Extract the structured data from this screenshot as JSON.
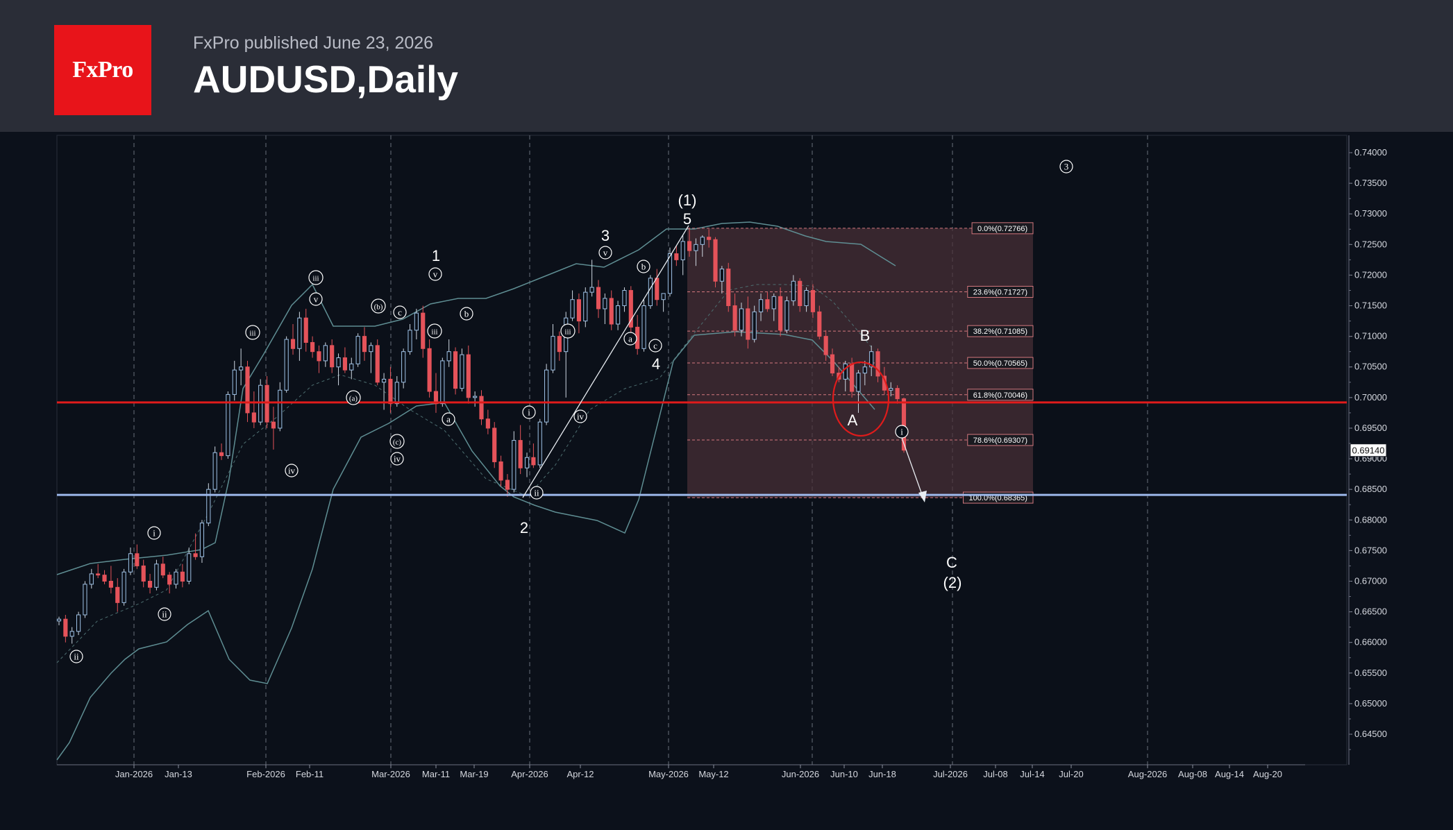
{
  "header": {
    "logo_text": "FxPro",
    "published": "FxPro published June 23, 2026",
    "title": "AUDUSD,Daily"
  },
  "chart_data": {
    "type": "candlestick",
    "symbol": "AUDUSD",
    "timeframe": "Daily",
    "current_price": "0.69140",
    "ylim": [
      0.6405,
      0.7425
    ],
    "y_ticks": [
      "0.74000",
      "0.73500",
      "0.73000",
      "0.72500",
      "0.72000",
      "0.71500",
      "0.71000",
      "0.70500",
      "0.70000",
      "0.69500",
      "0.69000",
      "0.68500",
      "0.68000",
      "0.67500",
      "0.67000",
      "0.66500",
      "0.66000",
      "0.65500",
      "0.65000",
      "0.64500"
    ],
    "x_ticks": [
      "Jan-2026",
      "Jan-13",
      "Feb-2026",
      "Feb-11",
      "Mar-2026",
      "Mar-11",
      "Mar-19",
      "Apr-2026",
      "Apr-12",
      "May-2026",
      "May-12",
      "Jun-2026",
      "Jun-10",
      "Jun-18",
      "Jul-2026",
      "Jul-08",
      "Jul-14",
      "Jul-20",
      "Aug-2026",
      "Aug-08",
      "Aug-14",
      "Aug-20"
    ],
    "horizontal_levels": {
      "resistance": 0.6992,
      "support": 0.6841
    },
    "fibonacci": [
      {
        "label": "0.0%(0.72766)",
        "value": 0.72766
      },
      {
        "label": "23.6%(0.71727)",
        "value": 0.71727
      },
      {
        "label": "38.2%(0.71085)",
        "value": 0.71085
      },
      {
        "label": "50.0%(0.70565)",
        "value": 0.70565
      },
      {
        "label": "61.8%(0.70046)",
        "value": 0.70046
      },
      {
        "label": "78.6%(0.69307)",
        "value": 0.69307
      },
      {
        "label": "100.0%(0.68365)",
        "value": 0.68365
      }
    ],
    "wave_labels": [
      "ii",
      "i",
      "ii",
      "iii",
      "iv",
      "v",
      "iii",
      "(a)",
      "(b)",
      "(c)",
      "iv",
      "v",
      "iii",
      "1",
      "a",
      "b",
      "c",
      "i",
      "ii",
      "iii",
      "iv",
      "v",
      "a",
      "b",
      "c",
      "3",
      "4",
      "(1)",
      "5",
      "2",
      "B",
      "A",
      "i",
      "C",
      "(2)",
      "3"
    ],
    "candles": [
      [
        0.6635,
        0.6642,
        0.6628,
        0.6638
      ],
      [
        0.6638,
        0.6645,
        0.66,
        0.661
      ],
      [
        0.661,
        0.6625,
        0.6598,
        0.6618
      ],
      [
        0.6618,
        0.665,
        0.6612,
        0.6645
      ],
      [
        0.6645,
        0.67,
        0.664,
        0.6695
      ],
      [
        0.6695,
        0.672,
        0.6688,
        0.6712
      ],
      [
        0.6712,
        0.6728,
        0.6705,
        0.671
      ],
      [
        0.671,
        0.6718,
        0.6695,
        0.67
      ],
      [
        0.67,
        0.6725,
        0.668,
        0.669
      ],
      [
        0.669,
        0.6705,
        0.665,
        0.6665
      ],
      [
        0.6665,
        0.672,
        0.666,
        0.6715
      ],
      [
        0.6715,
        0.6755,
        0.671,
        0.6745
      ],
      [
        0.6745,
        0.676,
        0.672,
        0.6725
      ],
      [
        0.6725,
        0.6735,
        0.669,
        0.67
      ],
      [
        0.67,
        0.6712,
        0.668,
        0.669
      ],
      [
        0.669,
        0.6735,
        0.6685,
        0.6728
      ],
      [
        0.6728,
        0.674,
        0.6705,
        0.671
      ],
      [
        0.671,
        0.6715,
        0.668,
        0.6695
      ],
      [
        0.6695,
        0.672,
        0.6688,
        0.6715
      ],
      [
        0.6715,
        0.6728,
        0.669,
        0.67
      ],
      [
        0.67,
        0.6755,
        0.6695,
        0.6745
      ],
      [
        0.6745,
        0.6778,
        0.6735,
        0.674
      ],
      [
        0.674,
        0.68,
        0.673,
        0.6795
      ],
      [
        0.6795,
        0.686,
        0.679,
        0.685
      ],
      [
        0.685,
        0.692,
        0.6845,
        0.691
      ],
      [
        0.691,
        0.6925,
        0.6898,
        0.6905
      ],
      [
        0.6905,
        0.701,
        0.69,
        0.7005
      ],
      [
        0.7005,
        0.706,
        0.6995,
        0.7045
      ],
      [
        0.7045,
        0.708,
        0.702,
        0.705
      ],
      [
        0.705,
        0.706,
        0.696,
        0.6975
      ],
      [
        0.6975,
        0.701,
        0.695,
        0.696
      ],
      [
        0.696,
        0.703,
        0.6955,
        0.702
      ],
      [
        0.702,
        0.7035,
        0.695,
        0.696
      ],
      [
        0.696,
        0.6985,
        0.6915,
        0.695
      ],
      [
        0.695,
        0.7025,
        0.6945,
        0.7012
      ],
      [
        0.7012,
        0.71,
        0.7008,
        0.7095
      ],
      [
        0.7095,
        0.712,
        0.707,
        0.708
      ],
      [
        0.708,
        0.714,
        0.706,
        0.713
      ],
      [
        0.713,
        0.7145,
        0.7075,
        0.709
      ],
      [
        0.709,
        0.71,
        0.7065,
        0.7075
      ],
      [
        0.7075,
        0.7085,
        0.704,
        0.706
      ],
      [
        0.706,
        0.709,
        0.705,
        0.7085
      ],
      [
        0.7085,
        0.7095,
        0.704,
        0.705
      ],
      [
        0.705,
        0.7072,
        0.702,
        0.7065
      ],
      [
        0.7065,
        0.7082,
        0.704,
        0.7045
      ],
      [
        0.7045,
        0.7065,
        0.703,
        0.7055
      ],
      [
        0.7055,
        0.7105,
        0.705,
        0.71
      ],
      [
        0.71,
        0.7115,
        0.706,
        0.7075
      ],
      [
        0.7075,
        0.709,
        0.704,
        0.7085
      ],
      [
        0.7085,
        0.7095,
        0.702,
        0.7025
      ],
      [
        0.7025,
        0.704,
        0.698,
        0.703
      ],
      [
        0.703,
        0.705,
        0.6975,
        0.699
      ],
      [
        0.699,
        0.7035,
        0.6985,
        0.7025
      ],
      [
        0.7025,
        0.708,
        0.7015,
        0.7075
      ],
      [
        0.7075,
        0.712,
        0.707,
        0.711
      ],
      [
        0.711,
        0.7145,
        0.7095,
        0.7138
      ],
      [
        0.7138,
        0.715,
        0.7065,
        0.708
      ],
      [
        0.708,
        0.7095,
        0.7,
        0.701
      ],
      [
        0.701,
        0.704,
        0.6975,
        0.699
      ],
      [
        0.699,
        0.7065,
        0.6985,
        0.706
      ],
      [
        0.706,
        0.7095,
        0.705,
        0.7075
      ],
      [
        0.7075,
        0.7082,
        0.7005,
        0.7015
      ],
      [
        0.7015,
        0.708,
        0.701,
        0.707
      ],
      [
        0.707,
        0.7085,
        0.699,
        0.7
      ],
      [
        0.7,
        0.701,
        0.6985,
        0.7002
      ],
      [
        0.7002,
        0.7012,
        0.6955,
        0.6965
      ],
      [
        0.6965,
        0.698,
        0.694,
        0.695
      ],
      [
        0.695,
        0.696,
        0.6885,
        0.6895
      ],
      [
        0.6895,
        0.6905,
        0.6855,
        0.6865
      ],
      [
        0.6865,
        0.6875,
        0.6838,
        0.685
      ],
      [
        0.685,
        0.6945,
        0.6845,
        0.693
      ],
      [
        0.693,
        0.6955,
        0.6875,
        0.6885
      ],
      [
        0.6885,
        0.691,
        0.687,
        0.6902
      ],
      [
        0.6902,
        0.6925,
        0.6885,
        0.689
      ],
      [
        0.689,
        0.6965,
        0.6885,
        0.696
      ],
      [
        0.696,
        0.7055,
        0.6955,
        0.7045
      ],
      [
        0.7045,
        0.712,
        0.704,
        0.71
      ],
      [
        0.71,
        0.7108,
        0.706,
        0.7075
      ],
      [
        0.7075,
        0.714,
        0.7,
        0.713
      ],
      [
        0.713,
        0.7175,
        0.7125,
        0.716
      ],
      [
        0.716,
        0.717,
        0.7105,
        0.7125
      ],
      [
        0.7125,
        0.718,
        0.7115,
        0.7172
      ],
      [
        0.7172,
        0.7225,
        0.7165,
        0.718
      ],
      [
        0.718,
        0.7192,
        0.713,
        0.7145
      ],
      [
        0.7145,
        0.717,
        0.712,
        0.7162
      ],
      [
        0.7162,
        0.7175,
        0.711,
        0.712
      ],
      [
        0.712,
        0.7158,
        0.711,
        0.715
      ],
      [
        0.715,
        0.718,
        0.714,
        0.7175
      ],
      [
        0.7175,
        0.7182,
        0.71,
        0.7115
      ],
      [
        0.7115,
        0.7135,
        0.707,
        0.708
      ],
      [
        0.708,
        0.716,
        0.7075,
        0.715
      ],
      [
        0.715,
        0.72,
        0.7145,
        0.7195
      ],
      [
        0.7195,
        0.721,
        0.715,
        0.716
      ],
      [
        0.716,
        0.717,
        0.714,
        0.717
      ],
      [
        0.717,
        0.7245,
        0.7165,
        0.7235
      ],
      [
        0.7235,
        0.7248,
        0.7215,
        0.7225
      ],
      [
        0.7225,
        0.7265,
        0.72,
        0.7255
      ],
      [
        0.7255,
        0.7277,
        0.723,
        0.724
      ],
      [
        0.724,
        0.726,
        0.7215,
        0.725
      ],
      [
        0.725,
        0.7265,
        0.723,
        0.7262
      ],
      [
        0.7262,
        0.7275,
        0.7245,
        0.7258
      ],
      [
        0.7258,
        0.7262,
        0.718,
        0.719
      ],
      [
        0.719,
        0.7215,
        0.717,
        0.721
      ],
      [
        0.721,
        0.722,
        0.714,
        0.715
      ],
      [
        0.715,
        0.717,
        0.71,
        0.711
      ],
      [
        0.711,
        0.7155,
        0.71,
        0.7145
      ],
      [
        0.7145,
        0.7165,
        0.708,
        0.7095
      ],
      [
        0.7095,
        0.715,
        0.709,
        0.714
      ],
      [
        0.714,
        0.717,
        0.7125,
        0.716
      ],
      [
        0.716,
        0.7172,
        0.714,
        0.7145
      ],
      [
        0.7145,
        0.717,
        0.7125,
        0.7165
      ],
      [
        0.7165,
        0.718,
        0.71,
        0.711
      ],
      [
        0.711,
        0.7165,
        0.7105,
        0.7158
      ],
      [
        0.7158,
        0.72,
        0.715,
        0.719
      ],
      [
        0.719,
        0.7195,
        0.714,
        0.715
      ],
      [
        0.715,
        0.718,
        0.714,
        0.7175
      ],
      [
        0.7175,
        0.7185,
        0.713,
        0.714
      ],
      [
        0.714,
        0.715,
        0.7095,
        0.71
      ],
      [
        0.71,
        0.711,
        0.706,
        0.707
      ],
      [
        0.707,
        0.708,
        0.7035,
        0.704
      ],
      [
        0.704,
        0.705,
        0.7025,
        0.703
      ],
      [
        0.703,
        0.706,
        0.701,
        0.7055
      ],
      [
        0.7055,
        0.7065,
        0.7,
        0.701
      ],
      [
        0.701,
        0.7045,
        0.6975,
        0.704
      ],
      [
        0.704,
        0.706,
        0.702,
        0.705
      ],
      [
        0.705,
        0.7085,
        0.7035,
        0.7075
      ],
      [
        0.7075,
        0.708,
        0.7025,
        0.7035
      ],
      [
        0.7035,
        0.705,
        0.7005,
        0.7012
      ],
      [
        0.7012,
        0.7025,
        0.7002,
        0.7015
      ],
      [
        0.7015,
        0.702,
        0.699,
        0.6998
      ],
      [
        0.6998,
        0.7,
        0.691,
        0.6914
      ]
    ]
  }
}
